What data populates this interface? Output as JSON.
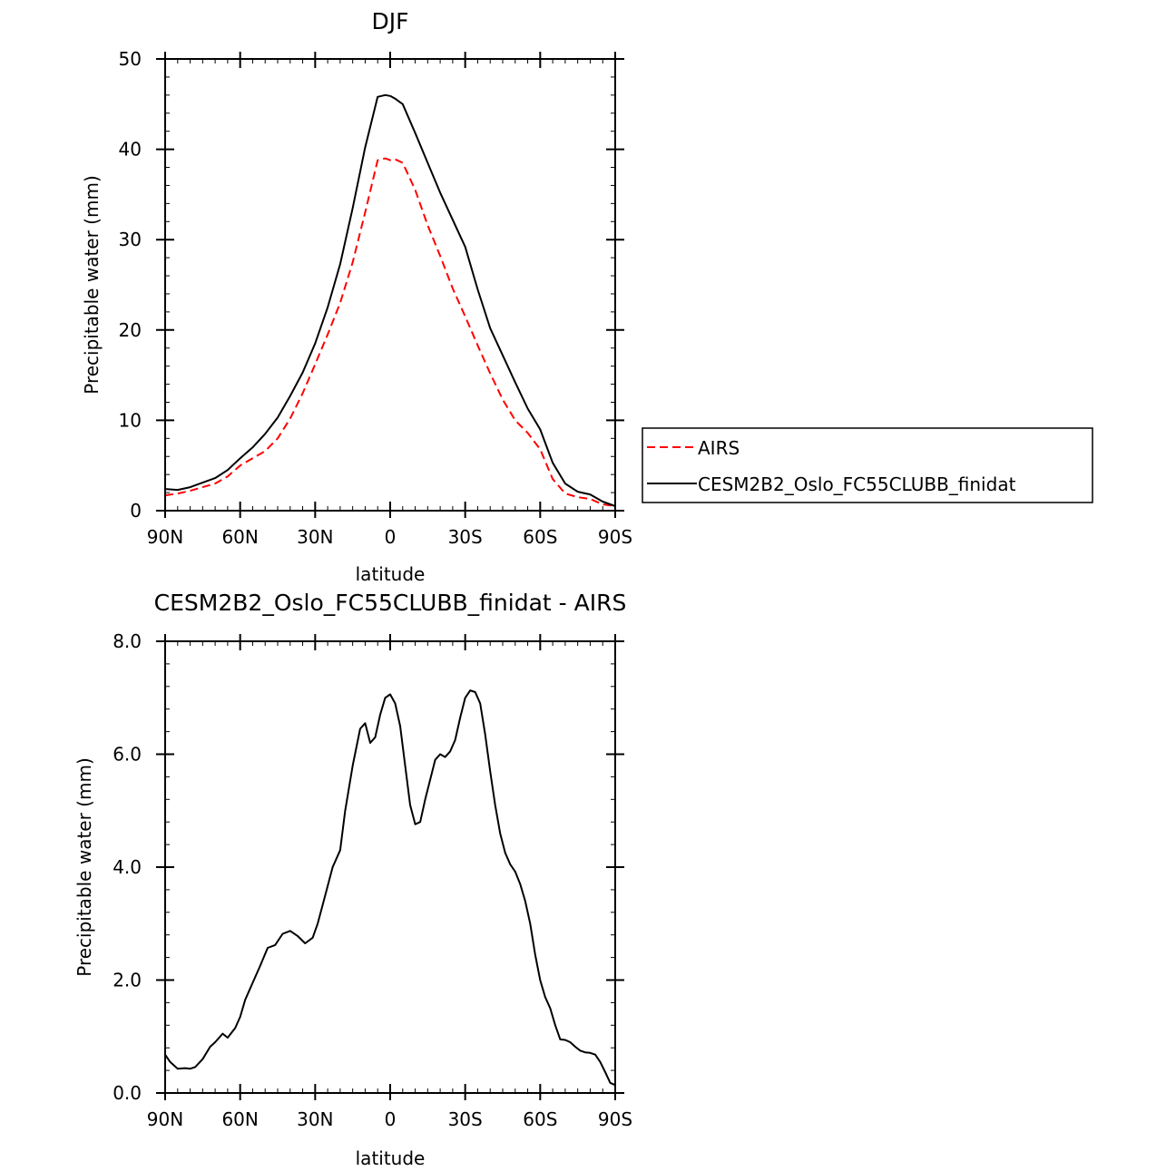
{
  "chart_data": [
    {
      "type": "line",
      "title": "DJF",
      "xlabel": "latitude",
      "ylabel": "Precipitable water (mm)",
      "x": [
        -90,
        -85,
        -80,
        -75,
        -70,
        -65,
        -60,
        -55,
        -50,
        -45,
        -40,
        -35,
        -30,
        -25,
        -20,
        -15,
        -10,
        -5,
        -2,
        0,
        2,
        5,
        10,
        15,
        20,
        25,
        30,
        35,
        40,
        45,
        50,
        55,
        60,
        65,
        70,
        75,
        80,
        85,
        90
      ],
      "xlim": [
        -90,
        90
      ],
      "ylim": [
        0,
        50
      ],
      "xticks": [
        -90,
        -60,
        -30,
        0,
        30,
        60,
        90
      ],
      "xtick_labels": [
        "90N",
        "60N",
        "30N",
        "0",
        "30S",
        "60S",
        "90S"
      ],
      "yticks": [
        0,
        10,
        20,
        30,
        40,
        50
      ],
      "ytick_labels": [
        "0",
        "10",
        "20",
        "30",
        "40",
        "50"
      ],
      "series": [
        {
          "name": "AIRS",
          "color": "#ff0000",
          "dash": "dashed",
          "values": [
            1.7,
            1.9,
            2.2,
            2.6,
            3.0,
            3.8,
            5.0,
            5.8,
            6.6,
            8.0,
            10.2,
            13.0,
            16.2,
            19.5,
            23.0,
            27.5,
            33.0,
            38.8,
            39.0,
            38.8,
            38.9,
            38.5,
            35.5,
            31.6,
            28.2,
            24.6,
            21.5,
            18.3,
            15.2,
            12.3,
            10.0,
            8.6,
            6.8,
            3.5,
            1.9,
            1.5,
            1.3,
            0.7,
            0.5
          ]
        },
        {
          "name": "CESM2B2_Oslo_FC55CLUBB_finidat",
          "color": "#000000",
          "dash": "solid",
          "values": [
            2.4,
            2.3,
            2.6,
            3.1,
            3.6,
            4.5,
            5.8,
            7.0,
            8.5,
            10.3,
            12.7,
            15.3,
            18.5,
            22.5,
            27.3,
            33.5,
            40.2,
            45.8,
            46.0,
            45.9,
            45.6,
            45.0,
            41.8,
            38.5,
            35.2,
            32.2,
            29.2,
            24.5,
            20.2,
            17.2,
            14.2,
            11.3,
            9.0,
            5.3,
            3.0,
            2.1,
            1.8,
            1.0,
            0.5
          ]
        }
      ],
      "legend": {
        "placement": "right",
        "entries": [
          "AIRS",
          "CESM2B2_Oslo_FC55CLUBB_finidat"
        ]
      }
    },
    {
      "type": "line",
      "title": "CESM2B2_Oslo_FC55CLUBB_finidat - AIRS",
      "xlabel": "latitude",
      "ylabel": "Precipitable water (mm)",
      "x": [
        -90,
        -88,
        -85,
        -82,
        -80,
        -78,
        -75,
        -72,
        -70,
        -67,
        -65,
        -62,
        -60,
        -58,
        -55,
        -52,
        -49,
        -46,
        -43,
        -40,
        -37,
        -34,
        -31,
        -29,
        -26,
        -23,
        -20,
        -18,
        -15,
        -12,
        -10,
        -8,
        -6,
        -4,
        -2,
        0,
        2,
        4,
        6,
        8,
        10,
        12,
        14,
        16,
        18,
        20,
        22,
        24,
        26,
        28,
        30,
        32,
        34,
        36,
        38,
        40,
        42,
        44,
        46,
        48,
        50,
        52,
        54,
        56,
        58,
        60,
        62,
        64,
        66,
        68,
        70,
        72,
        74,
        76,
        78,
        80,
        82,
        84,
        86,
        88,
        90
      ],
      "xlim": [
        -90,
        90
      ],
      "ylim": [
        0,
        8
      ],
      "xticks": [
        -90,
        -60,
        -30,
        0,
        30,
        60,
        90
      ],
      "xtick_labels": [
        "90N",
        "60N",
        "30N",
        "0",
        "30S",
        "60S",
        "90S"
      ],
      "yticks": [
        0,
        2,
        4,
        6,
        8
      ],
      "ytick_labels": [
        "0.0",
        "2.0",
        "4.0",
        "6.0",
        "8.0"
      ],
      "series": [
        {
          "name": "CESM2B2_Oslo_FC55CLUBB_finidat - AIRS",
          "color": "#000000",
          "dash": "solid",
          "values": [
            0.68,
            0.55,
            0.43,
            0.44,
            0.43,
            0.46,
            0.6,
            0.82,
            0.9,
            1.05,
            0.98,
            1.15,
            1.35,
            1.65,
            1.95,
            2.25,
            2.57,
            2.62,
            2.82,
            2.87,
            2.78,
            2.65,
            2.75,
            3.0,
            3.5,
            4.0,
            4.3,
            5.0,
            5.8,
            6.45,
            6.55,
            6.2,
            6.3,
            6.7,
            7.0,
            7.06,
            6.9,
            6.5,
            5.8,
            5.1,
            4.76,
            4.8,
            5.2,
            5.55,
            5.9,
            6.0,
            5.95,
            6.05,
            6.25,
            6.65,
            7.0,
            7.13,
            7.1,
            6.9,
            6.35,
            5.7,
            5.1,
            4.6,
            4.25,
            4.05,
            3.92,
            3.7,
            3.4,
            3.0,
            2.45,
            2.0,
            1.7,
            1.5,
            1.2,
            0.95,
            0.94,
            0.9,
            0.82,
            0.75,
            0.72,
            0.71,
            0.68,
            0.55,
            0.37,
            0.18,
            0.14
          ]
        }
      ]
    }
  ]
}
